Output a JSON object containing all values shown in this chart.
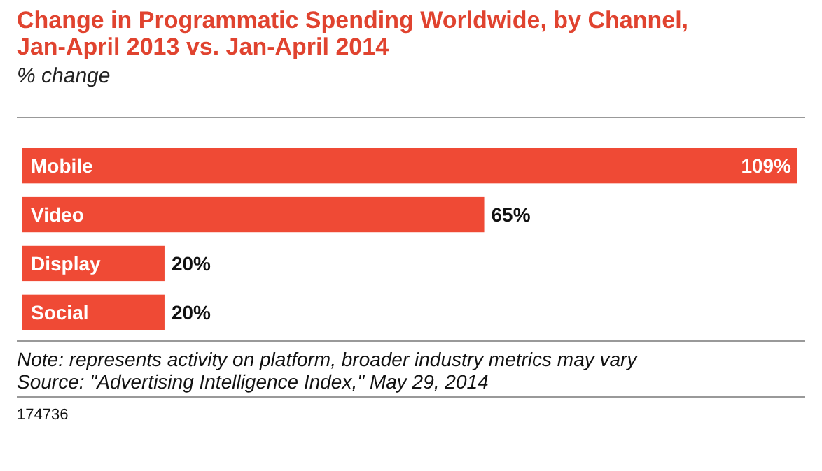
{
  "chart_data": {
    "type": "bar",
    "orientation": "horizontal",
    "title": "Change in Programmatic Spending Worldwide, by Channel, Jan-April 2013 vs. Jan-April 2014",
    "subtitle": "% change",
    "categories": [
      "Mobile",
      "Video",
      "Display",
      "Social"
    ],
    "values": [
      109,
      65,
      20,
      20
    ],
    "color": "#ef4a35",
    "value_labels": [
      "109%",
      "65%",
      "20%",
      "20%"
    ],
    "annotations": [
      "Note: represents activity on platform, broader industry metrics may vary",
      "Source: \"Advertising Intelligence Index,\" May 29, 2014",
      "174736"
    ]
  }
}
